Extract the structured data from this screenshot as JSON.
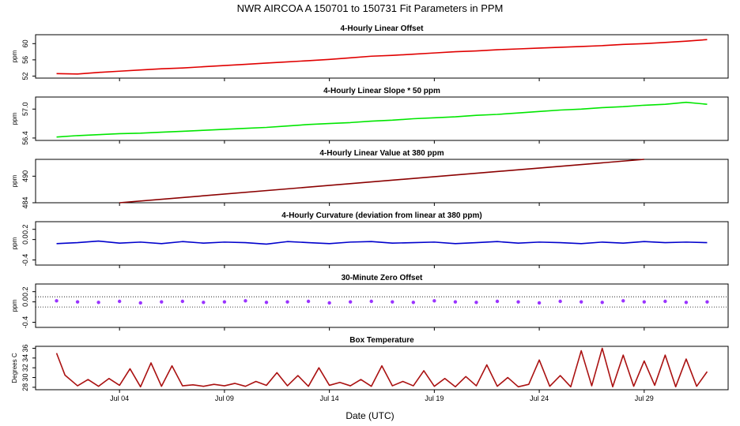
{
  "title": "NWR   AIRCOA A   150701 to 150731   Fit Parameters in PPM",
  "x_axis": {
    "label": "Date (UTC)",
    "ticks": [
      "Jul 04",
      "Jul 09",
      "Jul 14",
      "Jul 19",
      "Jul 24",
      "Jul 29"
    ],
    "tick_days": [
      4,
      9,
      14,
      19,
      24,
      29
    ],
    "range_days": [
      0,
      33
    ]
  },
  "chart_data": [
    {
      "type": "line",
      "title": "4-Hourly Linear Offset",
      "ylabel": "ppm",
      "yticks": [
        "52",
        "56",
        "60"
      ],
      "ytick_values": [
        52,
        56,
        60
      ],
      "ylim": [
        51.5,
        62.2
      ],
      "color": "#e00000",
      "series": [
        {
          "x": [
            1,
            2,
            3,
            4,
            5,
            6,
            7,
            8,
            9,
            10,
            11,
            12,
            13,
            14,
            15,
            16,
            17,
            18,
            19,
            20,
            21,
            22,
            23,
            24,
            25,
            26,
            27,
            28,
            29,
            30,
            31,
            32
          ],
          "values": [
            52.6,
            52.5,
            52.9,
            53.2,
            53.5,
            53.8,
            54.0,
            54.3,
            54.6,
            54.9,
            55.2,
            55.5,
            55.8,
            56.1,
            56.5,
            56.9,
            57.1,
            57.4,
            57.7,
            58.0,
            58.2,
            58.5,
            58.7,
            58.9,
            59.1,
            59.3,
            59.5,
            59.8,
            60.0,
            60.3,
            60.6,
            61.0
          ]
        }
      ]
    },
    {
      "type": "line",
      "title": "4-Hourly Linear Slope * 50 ppm",
      "ylabel": "ppm",
      "yticks": [
        "56.4",
        "57.0"
      ],
      "ytick_values": [
        56.4,
        57.0
      ],
      "ylim": [
        56.35,
        57.25
      ],
      "color": "#00e600",
      "series": [
        {
          "x": [
            1,
            2,
            3,
            4,
            5,
            6,
            7,
            8,
            9,
            10,
            11,
            12,
            13,
            14,
            15,
            16,
            17,
            18,
            19,
            20,
            21,
            22,
            23,
            24,
            25,
            26,
            27,
            28,
            29,
            30,
            31,
            32
          ],
          "values": [
            56.42,
            56.45,
            56.47,
            56.49,
            56.5,
            56.52,
            56.54,
            56.56,
            56.58,
            56.6,
            56.62,
            56.65,
            56.68,
            56.7,
            56.72,
            56.75,
            56.77,
            56.8,
            56.82,
            56.84,
            56.87,
            56.89,
            56.92,
            56.95,
            56.98,
            57.0,
            57.03,
            57.05,
            57.08,
            57.1,
            57.14,
            57.1
          ]
        }
      ]
    },
    {
      "type": "line",
      "title": "4-Hourly Linear Value at 380 ppm",
      "ylabel": "ppm",
      "yticks": [
        "484",
        "490"
      ],
      "ytick_values": [
        484,
        490
      ],
      "ylim": [
        484,
        493.8
      ],
      "color": "#8b0000",
      "series": [
        {
          "x": [
            4,
            29
          ],
          "values": [
            484.0,
            493.8
          ]
        }
      ]
    },
    {
      "type": "line",
      "title": "4-Hourly Curvature (deviation from linear at 380 ppm)",
      "ylabel": "ppm",
      "yticks": [
        "-0.4",
        "0.0",
        "0.2"
      ],
      "ytick_values": [
        -0.4,
        0.0,
        0.2
      ],
      "ylim": [
        -0.5,
        0.35
      ],
      "color": "#0000cc",
      "series": [
        {
          "x": [
            1,
            2,
            3,
            4,
            5,
            6,
            7,
            8,
            9,
            10,
            11,
            12,
            13,
            14,
            15,
            16,
            17,
            18,
            19,
            20,
            21,
            22,
            23,
            24,
            25,
            26,
            27,
            28,
            29,
            30,
            31,
            32
          ],
          "values": [
            -0.08,
            -0.06,
            -0.03,
            -0.07,
            -0.05,
            -0.08,
            -0.04,
            -0.07,
            -0.05,
            -0.06,
            -0.09,
            -0.04,
            -0.06,
            -0.08,
            -0.05,
            -0.04,
            -0.07,
            -0.06,
            -0.05,
            -0.08,
            -0.06,
            -0.04,
            -0.07,
            -0.05,
            -0.06,
            -0.08,
            -0.05,
            -0.07,
            -0.04,
            -0.06,
            -0.05,
            -0.06
          ]
        }
      ]
    },
    {
      "type": "scatter",
      "title": "30-Minute Zero Offset",
      "ylabel": "ppm",
      "yticks": [
        "-0.4",
        "0.0",
        "0.2"
      ],
      "ytick_values": [
        -0.4,
        0.0,
        0.2
      ],
      "ylim": [
        -0.5,
        0.35
      ],
      "color": "#9933ff",
      "reference_lines": [
        0.1,
        -0.1
      ],
      "series": [
        {
          "x": [
            1,
            2,
            3,
            4,
            5,
            6,
            7,
            8,
            9,
            10,
            11,
            12,
            13,
            14,
            15,
            16,
            17,
            18,
            19,
            20,
            21,
            22,
            23,
            24,
            25,
            26,
            27,
            28,
            29,
            30,
            31,
            32
          ],
          "values": [
            0.02,
            0.0,
            -0.01,
            0.01,
            -0.02,
            0.0,
            0.01,
            -0.01,
            0.0,
            0.02,
            -0.01,
            0.0,
            0.01,
            -0.02,
            0.0,
            0.01,
            0.0,
            -0.01,
            0.02,
            0.0,
            -0.01,
            0.01,
            0.0,
            -0.02,
            0.01,
            0.0,
            -0.01,
            0.02,
            0.0,
            0.01,
            -0.01,
            0.0
          ]
        }
      ]
    },
    {
      "type": "line",
      "title": "Box Temperature",
      "ylabel": "Degrees C",
      "yticks": [
        "28",
        "30",
        "32",
        "34",
        "36"
      ],
      "ytick_values": [
        28,
        30,
        32,
        34,
        36
      ],
      "ylim": [
        27.5,
        36.4
      ],
      "color": "#aa1111",
      "series": [
        {
          "x": [
            1,
            1.4,
            2,
            2.5,
            3,
            3.5,
            4,
            4.5,
            5,
            5.5,
            6,
            6.5,
            7,
            7.5,
            8,
            8.5,
            9,
            9.5,
            10,
            10.5,
            11,
            11.5,
            12,
            12.5,
            13,
            13.5,
            14,
            14.5,
            15,
            15.5,
            16,
            16.5,
            17,
            17.5,
            18,
            18.5,
            19,
            19.5,
            20,
            20.5,
            21,
            21.5,
            22,
            22.5,
            23,
            23.5,
            24,
            24.5,
            25,
            25.5,
            26,
            26.5,
            27,
            27.5,
            28,
            28.5,
            29,
            29.5,
            30,
            30.5,
            31,
            31.5,
            32
          ],
          "values": [
            35.0,
            30.5,
            28.3,
            29.6,
            28.2,
            29.8,
            28.4,
            31.8,
            28.1,
            33.0,
            28.2,
            32.4,
            28.3,
            28.5,
            28.2,
            28.6,
            28.3,
            28.8,
            28.2,
            29.2,
            28.4,
            31.0,
            28.3,
            30.4,
            28.2,
            32.0,
            28.4,
            29.0,
            28.3,
            29.6,
            28.2,
            32.4,
            28.3,
            29.2,
            28.3,
            31.4,
            28.2,
            29.8,
            28.1,
            30.2,
            28.3,
            32.6,
            28.2,
            30.0,
            28.1,
            28.6,
            33.6,
            28.2,
            30.4,
            28.1,
            35.5,
            28.3,
            36.0,
            28.1,
            34.6,
            28.2,
            33.4,
            28.4,
            34.6,
            28.1,
            33.8,
            28.2,
            31.2
          ]
        }
      ]
    }
  ]
}
